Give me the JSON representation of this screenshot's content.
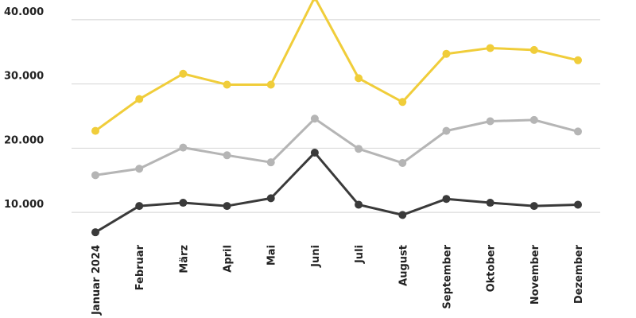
{
  "chart_data": {
    "type": "line",
    "categories": [
      "Januar 2024",
      "Februar",
      "März",
      "April",
      "Mai",
      "Juni",
      "Juli",
      "August",
      "September",
      "Oktober",
      "November",
      "Dezember"
    ],
    "series": [
      {
        "color": "#f0cd3a",
        "values": [
          22700,
          27650,
          31600,
          29900,
          29900,
          43500,
          30900,
          27200,
          34700,
          35600,
          35300,
          33700
        ]
      },
      {
        "color": "#b5b5b5",
        "values": [
          15800,
          16800,
          20100,
          18900,
          17800,
          24600,
          19900,
          17700,
          22700,
          24200,
          24400,
          22600
        ]
      },
      {
        "color": "#3a3a3a",
        "values": [
          6900,
          11000,
          11500,
          11000,
          12200,
          19300,
          11200,
          9600,
          12100,
          11500,
          11000,
          11200
        ]
      }
    ],
    "ylim": [
      4000,
      43000
    ],
    "yticks": [
      {
        "value": 10000,
        "label": "10.000"
      },
      {
        "value": 20000,
        "label": "20.000"
      },
      {
        "value": 30000,
        "label": "30.000"
      },
      {
        "value": 40000,
        "label": "40.000"
      }
    ],
    "grid": true
  }
}
